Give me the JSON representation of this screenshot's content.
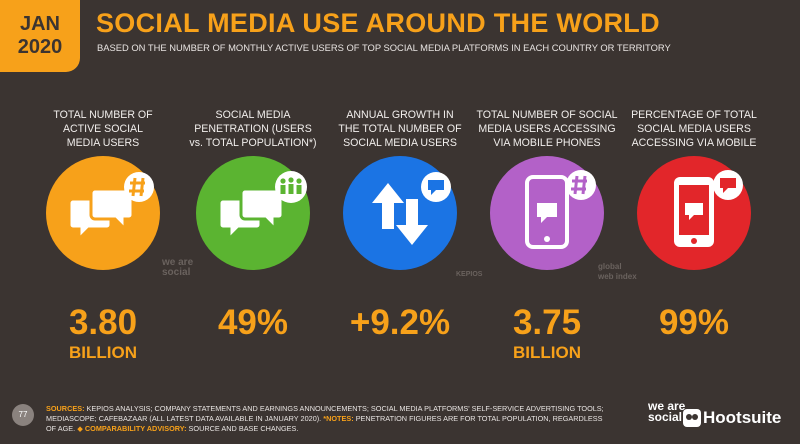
{
  "header": {
    "date_month": "JAN",
    "date_year": "2020",
    "title": "SOCIAL MEDIA USE AROUND THE WORLD",
    "subtitle": "BASED ON THE NUMBER OF MONTHLY ACTIVE USERS OF TOP SOCIAL MEDIA PLATFORMS IN EACH COUNTRY OR TERRITORY"
  },
  "columns": [
    {
      "label_lines": [
        "TOTAL NUMBER OF",
        "ACTIVE SOCIAL",
        "MEDIA USERS"
      ],
      "value": "3.80",
      "unit": "BILLION",
      "color": "#f7a11a"
    },
    {
      "label_lines": [
        "SOCIAL MEDIA",
        "PENETRATION (USERS",
        "vs. TOTAL POPULATION*)"
      ],
      "value": "49%",
      "color": "#5bb431"
    },
    {
      "label_lines": [
        "ANNUAL GROWTH IN",
        "THE TOTAL NUMBER OF",
        "SOCIAL MEDIA USERS"
      ],
      "value": "+9.2%",
      "color": "#1b74e4"
    },
    {
      "label_lines": [
        "TOTAL NUMBER OF SOCIAL",
        "MEDIA USERS ACCESSING",
        "VIA MOBILE PHONES"
      ],
      "value": "3.75",
      "unit": "BILLION",
      "color": "#b361c8"
    },
    {
      "label_lines": [
        "PERCENTAGE OF TOTAL",
        "SOCIAL MEDIA USERS",
        "ACCESSING VIA MOBILE"
      ],
      "value": "99%",
      "color": "#e2262a"
    }
  ],
  "watermarks": [
    "we are social",
    "KEPIOS",
    "global web index"
  ],
  "footer": {
    "page_number": "77",
    "sources_label": "SOURCES:",
    "sources": "KEPIOS ANALYSIS; COMPANY STATEMENTS AND EARNINGS ANNOUNCEMENTS; SOCIAL MEDIA PLATFORMS' SELF-SERVICE ADVERTISING TOOLS; MEDIASCOPE; CAFEBAZAAR (ALL LATEST DATA AVAILABLE IN JANUARY 2020).",
    "notes_label": "*NOTES:",
    "notes": "PENETRATION FIGURES ARE FOR TOTAL POPULATION, REGARDLESS OF AGE.",
    "advisory_label": "COMPARABILITY ADVISORY:",
    "advisory": "SOURCE AND BASE CHANGES.",
    "brand_1": "we are social",
    "brand_2": "Hootsuite"
  }
}
